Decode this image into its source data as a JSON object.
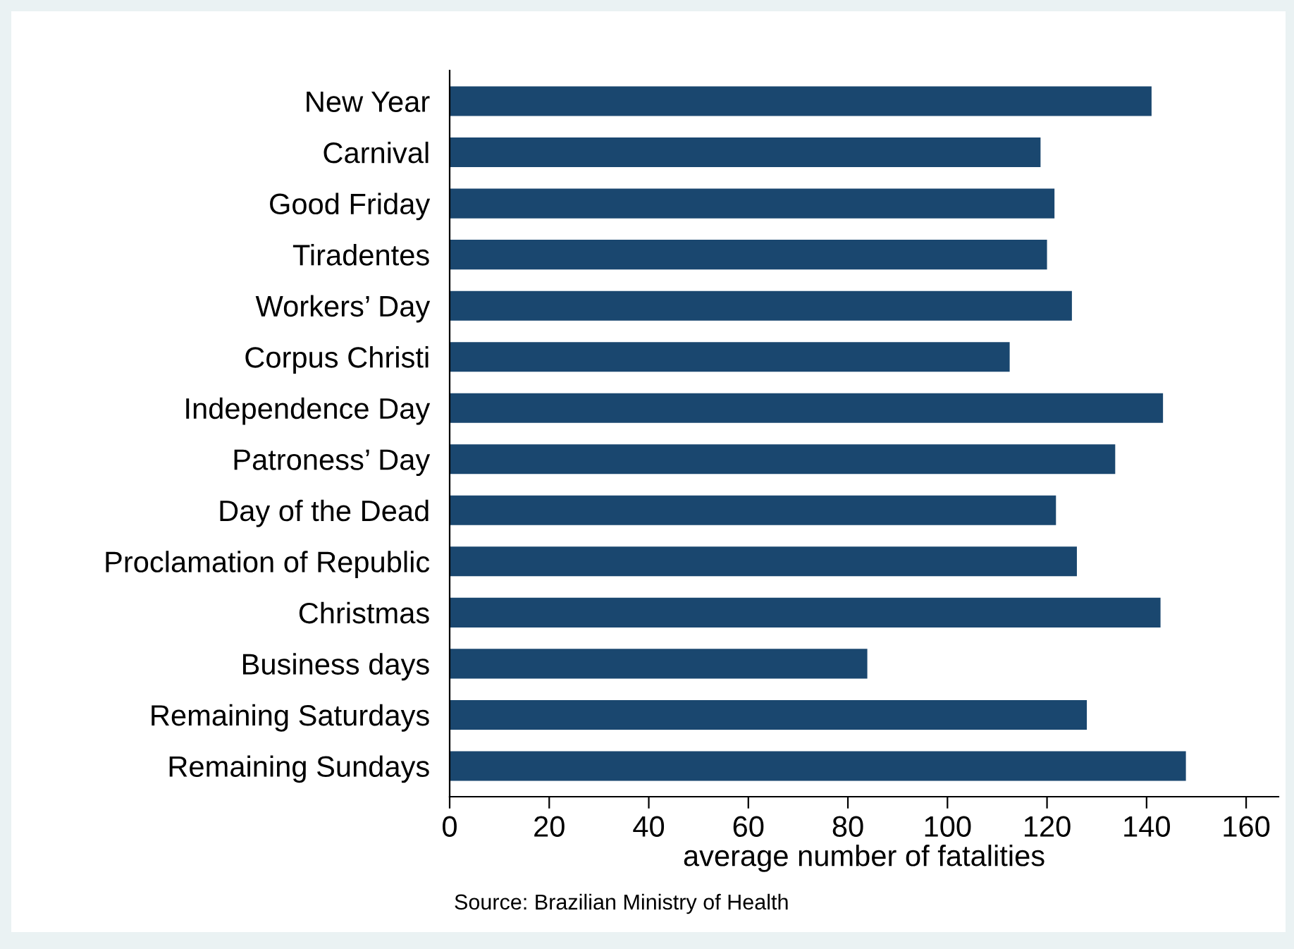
{
  "chart_data": {
    "type": "bar",
    "orientation": "horizontal",
    "xlabel": "average number of fatalities",
    "categories": [
      "New Year",
      "Carnival",
      "Good Friday",
      "Tiradentes",
      "Workers’ Day",
      "Corpus Christi",
      "Independence Day",
      "Patroness’ Day",
      "Day of the Dead",
      "Proclamation of Republic",
      "Christmas",
      "Business days",
      "Remaining Saturdays",
      "Remaining Sundays"
    ],
    "values": [
      141,
      118.7,
      121.5,
      120,
      125,
      112.5,
      143.3,
      133.7,
      121.8,
      126,
      142.8,
      83.9,
      128,
      147.9
    ],
    "color": "#1a476f",
    "xlim": [
      0,
      166.5
    ],
    "xticks": [
      0,
      20,
      40,
      60,
      80,
      100,
      120,
      140,
      160
    ],
    "grid": false,
    "legend": false,
    "annotations": [
      "Source: Brazilian Ministry of Health"
    ]
  }
}
